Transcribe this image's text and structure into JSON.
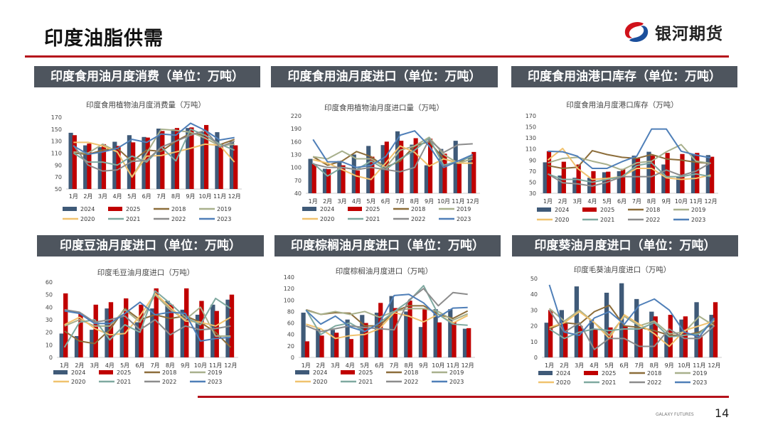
{
  "header": {
    "title": "印度油脂供需",
    "logo_text": "银河期货"
  },
  "footer": {
    "brand": "GALAXY FUTURES",
    "page": "14"
  },
  "colors": {
    "accent": "#b5121b",
    "panel_header": "#4e555e"
  },
  "series_colors": {
    "2024": "#3f5a78",
    "2025": "#c00000",
    "2018": "#8c6d3a",
    "2019": "#a8b08c",
    "2020": "#f0c26e",
    "2021": "#7fa9a0",
    "2022": "#8c8c8c",
    "2023": "#4f7fb8"
  },
  "panels": [
    {
      "header": "印度食用油月度消费（单位：万吨）"
    },
    {
      "header": "印度食用油月度进口（单位：万吨）"
    },
    {
      "header": "印度食用油港口库存（单位：万吨）"
    },
    {
      "header": "印度豆油月度进口（单位：万吨）"
    },
    {
      "header": "印度棕榈油月度进口（单位：万吨）"
    },
    {
      "header": "印度葵油月度进口（单位：万吨）"
    }
  ],
  "chart_data": [
    {
      "type": "bar+line",
      "title": "印度食用植物油月度消费量（万吨）",
      "ylim": [
        50,
        170
      ],
      "yticks": [
        50,
        70,
        90,
        110,
        130,
        150,
        170
      ],
      "legend": "bottom",
      "categories": [
        "1月",
        "2月",
        "3月",
        "4月",
        "5月",
        "6月",
        "7月",
        "8月",
        "9月",
        "10月",
        "11月",
        "12月"
      ],
      "bars": [
        {
          "name": "2024",
          "values": [
            144,
            123,
            120,
            129,
            140,
            137,
            151,
            150,
            152,
            145,
            145,
            130
          ]
        },
        {
          "name": "2025",
          "values": [
            140,
            126,
            125,
            122,
            128,
            136,
            147,
            152,
            153,
            157,
            125,
            123
          ]
        }
      ],
      "lines": [
        {
          "name": "2018",
          "values": [
            110,
            108,
            115,
            118,
            96,
            115,
            113,
            130,
            143,
            140,
            124,
            133
          ]
        },
        {
          "name": "2019",
          "values": [
            112,
            110,
            125,
            112,
            70,
            110,
            150,
            148,
            145,
            135,
            122,
            125
          ]
        },
        {
          "name": "2020",
          "values": [
            128,
            128,
            122,
            112,
            70,
            105,
            106,
            112,
            118,
            125,
            123,
            95
          ]
        },
        {
          "name": "2021",
          "values": [
            110,
            95,
            95,
            90,
            105,
            95,
            120,
            97,
            150,
            140,
            125,
            115
          ]
        },
        {
          "name": "2022",
          "values": [
            123,
            90,
            80,
            82,
            96,
            98,
            120,
            130,
            140,
            148,
            120,
            130
          ]
        },
        {
          "name": "2023",
          "values": [
            122,
            108,
            112,
            118,
            133,
            128,
            142,
            140,
            160,
            148,
            132,
            136
          ]
        }
      ]
    },
    {
      "type": "bar+line",
      "title": "印度食用植物油月度进口量（万吨）",
      "ylim": [
        40,
        220
      ],
      "yticks": [
        40,
        70,
        100,
        130,
        160,
        190,
        220
      ],
      "legend": "bottom",
      "categories": [
        "1月",
        "2月",
        "3月",
        "4月",
        "5月",
        "6月",
        "7月",
        "8月",
        "9月",
        "10月",
        "11月",
        "12月"
      ],
      "bars": [
        {
          "name": "2024",
          "values": [
            120,
            97,
            115,
            130,
            150,
            152,
            184,
            153,
            105,
            143,
            162,
            125
          ]
        },
        {
          "name": "2025",
          "values": [
            108,
            96,
            105,
            93,
            125,
            160,
            162,
            168,
            167,
            132,
            110,
            136
          ]
        }
      ],
      "lines": [
        {
          "name": "2018",
          "values": [
            125,
            105,
            115,
            137,
            125,
            100,
            115,
            150,
            160,
            120,
            110,
            130
          ]
        },
        {
          "name": "2019",
          "values": [
            125,
            120,
            138,
            120,
            120,
            100,
            140,
            150,
            170,
            130,
            110,
            120
          ]
        },
        {
          "name": "2020",
          "values": [
            118,
            110,
            95,
            80,
            72,
            110,
            150,
            135,
            103,
            120,
            110,
            110
          ]
        },
        {
          "name": "2021",
          "values": [
            110,
            80,
            100,
            95,
            115,
            95,
            120,
            140,
            168,
            105,
            115,
            125
          ]
        },
        {
          "name": "2022",
          "values": [
            108,
            100,
            100,
            95,
            100,
            95,
            90,
            100,
            165,
            135,
            153,
            155
          ]
        },
        {
          "name": "2023",
          "values": [
            165,
            113,
            113,
            100,
            105,
            125,
            175,
            185,
            150,
            100,
            115,
            130
          ]
        }
      ]
    },
    {
      "type": "bar+line",
      "title": "印度食用油月度港口库存（万吨）",
      "ylim": [
        30,
        170
      ],
      "yticks": [
        30,
        50,
        70,
        90,
        110,
        130,
        150,
        170
      ],
      "legend": "bottom",
      "categories": [
        "1月",
        "2月",
        "3月",
        "4月",
        "5月",
        "6月",
        "7月",
        "8月",
        "9月",
        "10月",
        "11月",
        "12月"
      ],
      "bars": [
        {
          "name": "2024",
          "values": [
            86,
            62,
            58,
            58,
            68,
            70,
            98,
            105,
            82,
            60,
            100,
            99
          ]
        },
        {
          "name": "2025",
          "values": [
            106,
            87,
            82,
            70,
            69,
            74,
            93,
            98,
            103,
            101,
            103,
            96
          ]
        }
      ],
      "lines": [
        {
          "name": "2018",
          "values": [
            80,
            75,
            77,
            107,
            100,
            95,
            93,
            100,
            92,
            90,
            86,
            84
          ]
        },
        {
          "name": "2019",
          "values": [
            85,
            93,
            95,
            88,
            82,
            72,
            85,
            88,
            105,
            118,
            88,
            84
          ]
        },
        {
          "name": "2020",
          "values": [
            90,
            111,
            75,
            55,
            57,
            60,
            75,
            75,
            58,
            55,
            57,
            63
          ]
        },
        {
          "name": "2021",
          "values": [
            65,
            55,
            55,
            50,
            55,
            60,
            80,
            85,
            60,
            60,
            65,
            60
          ]
        },
        {
          "name": "2022",
          "values": [
            65,
            49,
            47,
            43,
            50,
            60,
            60,
            60,
            72,
            62,
            70,
            85
          ]
        },
        {
          "name": "2023",
          "values": [
            106,
            105,
            97,
            75,
            75,
            87,
            97,
            146,
            146,
            106,
            99,
            94
          ]
        }
      ]
    },
    {
      "type": "bar+line",
      "title": "印度毛豆油月度进口（万吨）",
      "ylim": [
        0,
        60
      ],
      "yticks": [
        0,
        10,
        20,
        30,
        40,
        50,
        60
      ],
      "legend": "bottom",
      "categories": [
        "1月",
        "2月",
        "3月",
        "4月",
        "5月",
        "6月",
        "7月",
        "8月",
        "9月",
        "10月",
        "11月",
        "12月"
      ],
      "bars": [
        {
          "name": "2024",
          "values": [
            19,
            17,
            22,
            39,
            33,
            28,
            39,
            45,
            38,
            34,
            42,
            46
          ]
        },
        {
          "name": "2025",
          "values": [
            51,
            35,
            42,
            44,
            47,
            42,
            55,
            42,
            55,
            45,
            37,
            50
          ]
        }
      ],
      "lines": [
        {
          "name": "2018",
          "values": [
            21,
            13,
            11,
            22,
            39,
            30,
            34,
            31,
            33,
            28,
            20,
            8
          ]
        },
        {
          "name": "2019",
          "values": [
            25,
            30,
            25,
            25,
            38,
            28,
            50,
            38,
            30,
            40,
            17,
            17
          ]
        },
        {
          "name": "2020",
          "values": [
            26,
            32,
            23,
            18,
            19,
            33,
            51,
            40,
            29,
            28,
            25,
            32
          ]
        },
        {
          "name": "2021",
          "values": [
            8,
            28,
            30,
            14,
            26,
            20,
            53,
            43,
            32,
            26,
            47,
            39
          ]
        },
        {
          "name": "2022",
          "values": [
            38,
            36,
            28,
            30,
            33,
            22,
            30,
            18,
            25,
            22,
            23,
            25
          ]
        },
        {
          "name": "2023",
          "values": [
            37,
            35,
            27,
            27,
            35,
            44,
            34,
            36,
            35,
            13,
            15,
            16
          ]
        }
      ]
    },
    {
      "type": "bar+line",
      "title": "印度棕榈油月度进口（万吨）",
      "ylim": [
        0,
        140
      ],
      "yticks": [
        0,
        20,
        40,
        60,
        80,
        100,
        120,
        140
      ],
      "legend": "bottom",
      "categories": [
        "1月",
        "2月",
        "3月",
        "4月",
        "5月",
        "6月",
        "7月",
        "8月",
        "9月",
        "10月",
        "11月",
        "12月"
      ],
      "bars": [
        {
          "name": "2024",
          "values": [
            78,
            50,
            48,
            66,
            74,
            78,
            107,
            80,
            53,
            84,
            84,
            50
          ]
        },
        {
          "name": "2025",
          "values": [
            28,
            38,
            43,
            32,
            60,
            95,
            86,
            99,
            84,
            61,
            62,
            51
          ]
        }
      ],
      "lines": [
        {
          "name": "2018",
          "values": [
            83,
            75,
            78,
            77,
            55,
            55,
            80,
            90,
            90,
            75,
            68,
            81
          ]
        },
        {
          "name": "2019",
          "values": [
            82,
            75,
            80,
            75,
            80,
            70,
            80,
            85,
            85,
            80,
            65,
            76
          ]
        },
        {
          "name": "2020",
          "values": [
            58,
            50,
            33,
            38,
            40,
            50,
            78,
            72,
            62,
            75,
            60,
            73
          ]
        },
        {
          "name": "2021",
          "values": [
            83,
            40,
            55,
            60,
            45,
            60,
            80,
            98,
            125,
            75,
            58,
            56
          ]
        },
        {
          "name": "2022",
          "values": [
            55,
            45,
            50,
            55,
            52,
            50,
            48,
            100,
            120,
            90,
            113,
            110
          ]
        },
        {
          "name": "2023",
          "values": [
            82,
            58,
            72,
            53,
            45,
            60,
            108,
            110,
            95,
            70,
            86,
            87
          ]
        }
      ]
    },
    {
      "type": "bar+line",
      "title": "印度毛葵油月度进口（万吨）",
      "ylim": [
        0,
        50
      ],
      "yticks": [
        0,
        10,
        20,
        30,
        40,
        50
      ],
      "legend": "bottom",
      "categories": [
        "1月",
        "2月",
        "3月",
        "4月",
        "5月",
        "6月",
        "7月",
        "8月",
        "9月",
        "10月",
        "11月",
        "12月"
      ],
      "bars": [
        {
          "name": "2024",
          "values": [
            22,
            30,
            45,
            24,
            41,
            47,
            37,
            29,
            16,
            24,
            35,
            27
          ]
        },
        {
          "name": "2025",
          "values": [
            30,
            22,
            20,
            18,
            19,
            20,
            19,
            26,
            27,
            26,
            14,
            35
          ]
        }
      ],
      "lines": [
        {
          "name": "2018",
          "values": [
            18,
            22,
            21,
            29,
            33,
            20,
            19,
            17,
            14,
            14,
            16,
            22
          ]
        },
        {
          "name": "2019",
          "values": [
            31,
            23,
            30,
            22,
            14,
            26,
            20,
            23,
            15,
            16,
            26,
            20
          ]
        },
        {
          "name": "2020",
          "values": [
            19,
            22,
            29,
            22,
            12,
            27,
            21,
            15,
            7,
            17,
            20,
            23
          ]
        },
        {
          "name": "2021",
          "values": [
            18,
            12,
            16,
            18,
            17,
            18,
            18,
            22,
            13,
            14,
            15,
            24
          ]
        },
        {
          "name": "2022",
          "values": [
            30,
            16,
            22,
            5,
            12,
            12,
            7,
            7,
            18,
            12,
            12,
            20
          ]
        },
        {
          "name": "2023",
          "values": [
            46,
            16,
            14,
            25,
            29,
            21,
            33,
            37,
            30,
            16,
            13,
            25
          ]
        }
      ]
    }
  ]
}
